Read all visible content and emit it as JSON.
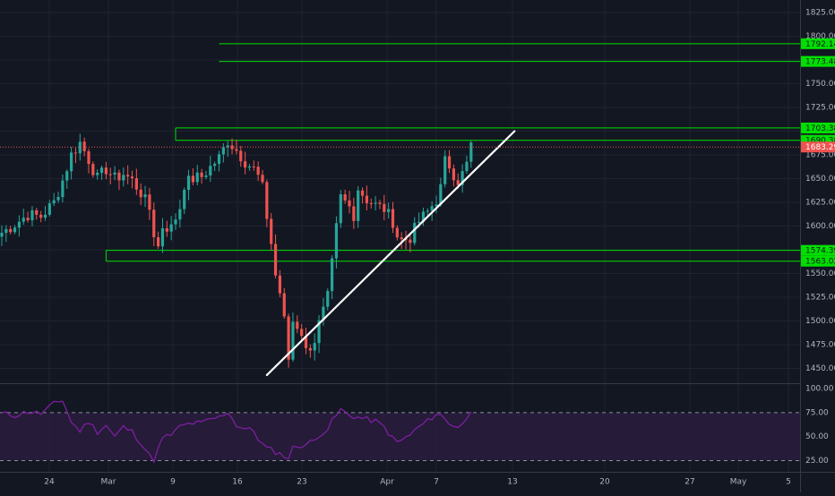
{
  "theme": {
    "background": "#131722",
    "grid": "#1e2330",
    "axis_text": "#b2b5be",
    "up_color": "#26a69a",
    "down_color": "#ef5350",
    "level_color": "#00e000",
    "trendline_color": "#ffffff",
    "last_price_color": "#ef5350",
    "rsi_line_color": "#7b1fa2",
    "rsi_band_fill": "#2a1c3c"
  },
  "chart_data": [
    {
      "type": "candlestick",
      "y_ticks": [
        "1825.00",
        "1800.00",
        "1775.00",
        "1750.00",
        "1725.00",
        "1700.00",
        "1675.00",
        "1650.00",
        "1625.00",
        "1600.00",
        "1575.00",
        "1550.00",
        "1525.00",
        "1500.00",
        "1475.00",
        "1450.00"
      ],
      "ylim": [
        1440,
        1830
      ],
      "x_ticks": [
        "24",
        "Mar",
        "9",
        "16",
        "23",
        "Apr",
        "7",
        "13",
        "20",
        "27",
        "May",
        "5"
      ],
      "price_path": [
        [
          0,
          1593
        ],
        [
          3,
          1602
        ],
        [
          6,
          1612
        ],
        [
          9,
          1610
        ],
        [
          12,
          1625
        ],
        [
          14,
          1648
        ],
        [
          16,
          1675
        ],
        [
          18,
          1688
        ],
        [
          20,
          1670
        ],
        [
          22,
          1650
        ],
        [
          24,
          1660
        ],
        [
          26,
          1650
        ],
        [
          28,
          1655
        ],
        [
          30,
          1648
        ],
        [
          32,
          1635
        ],
        [
          34,
          1618
        ],
        [
          35,
          1592
        ],
        [
          36,
          1578
        ],
        [
          37,
          1600
        ],
        [
          39,
          1598
        ],
        [
          41,
          1620
        ],
        [
          42,
          1644
        ],
        [
          44,
          1650
        ],
        [
          46,
          1652
        ],
        [
          48,
          1662
        ],
        [
          50,
          1672
        ],
        [
          52,
          1690
        ],
        [
          54,
          1680
        ],
        [
          56,
          1668
        ],
        [
          58,
          1660
        ],
        [
          59,
          1652
        ],
        [
          60,
          1640
        ],
        [
          61,
          1610
        ],
        [
          62,
          1582
        ],
        [
          63,
          1548
        ],
        [
          64,
          1530
        ],
        [
          65,
          1500
        ],
        [
          66,
          1460
        ],
        [
          67,
          1500
        ],
        [
          68,
          1495
        ],
        [
          69,
          1488
        ],
        [
          70,
          1468
        ],
        [
          72,
          1480
        ],
        [
          73,
          1497
        ],
        [
          74,
          1510
        ],
        [
          75,
          1525
        ],
        [
          76,
          1560
        ],
        [
          77,
          1598
        ],
        [
          78,
          1630
        ],
        [
          80,
          1620
        ],
        [
          81,
          1612
        ],
        [
          82,
          1640
        ],
        [
          84,
          1628
        ],
        [
          86,
          1622
        ],
        [
          88,
          1618
        ],
        [
          90,
          1605
        ],
        [
          91,
          1590
        ],
        [
          92,
          1585
        ],
        [
          94,
          1588
        ],
        [
          96,
          1605
        ],
        [
          98,
          1615
        ],
        [
          100,
          1628
        ],
        [
          101,
          1640
        ],
        [
          102,
          1668
        ],
        [
          103,
          1664
        ],
        [
          104,
          1655
        ],
        [
          105,
          1648
        ],
        [
          106,
          1655
        ],
        [
          107,
          1665
        ],
        [
          108,
          1688
        ]
      ],
      "levels": [
        {
          "label": "1792.14",
          "value": 1792.14,
          "from_x": 50
        },
        {
          "label": "1773.48",
          "value": 1773.48,
          "from_x": 50
        },
        {
          "label": "1703.38",
          "value": 1703.38,
          "from_x": 40
        },
        {
          "label": "1690.38",
          "value": 1690.38,
          "from_x": 40
        },
        {
          "label": "1574.39",
          "value": 1574.39,
          "from_x": 24
        },
        {
          "label": "1563.02",
          "value": 1563.02,
          "from_x": 24
        }
      ],
      "last_price": {
        "label": "1683.29",
        "value": 1683.29
      },
      "trendline": {
        "x1": 61,
        "y1": 1443,
        "x2": 118,
        "y2": 1700
      }
    },
    {
      "type": "line",
      "name": "RSI",
      "y_ticks": [
        "100.00",
        "75.00",
        "50.00",
        "25.00"
      ],
      "ylim": [
        20,
        100
      ],
      "upper_band": 75,
      "lower_band": 25,
      "values": [
        [
          0,
          74
        ],
        [
          3,
          72
        ],
        [
          6,
          76
        ],
        [
          9,
          74
        ],
        [
          12,
          84
        ],
        [
          14,
          88
        ],
        [
          16,
          65
        ],
        [
          18,
          56
        ],
        [
          20,
          66
        ],
        [
          22,
          55
        ],
        [
          24,
          62
        ],
        [
          26,
          50
        ],
        [
          28,
          60
        ],
        [
          30,
          55
        ],
        [
          32,
          44
        ],
        [
          34,
          30
        ],
        [
          35,
          26
        ],
        [
          37,
          48
        ],
        [
          39,
          52
        ],
        [
          41,
          60
        ],
        [
          42,
          62
        ],
        [
          44,
          64
        ],
        [
          46,
          64
        ],
        [
          48,
          68
        ],
        [
          50,
          70
        ],
        [
          52,
          76
        ],
        [
          54,
          62
        ],
        [
          56,
          58
        ],
        [
          58,
          56
        ],
        [
          59,
          48
        ],
        [
          60,
          42
        ],
        [
          61,
          38
        ],
        [
          62,
          36
        ],
        [
          63,
          34
        ],
        [
          64,
          32
        ],
        [
          65,
          30
        ],
        [
          66,
          28
        ],
        [
          67,
          38
        ],
        [
          68,
          40
        ],
        [
          70,
          42
        ],
        [
          72,
          46
        ],
        [
          73,
          52
        ],
        [
          75,
          58
        ],
        [
          76,
          66
        ],
        [
          77,
          72
        ],
        [
          78,
          78
        ],
        [
          80,
          72
        ],
        [
          82,
          70
        ],
        [
          84,
          68
        ],
        [
          86,
          66
        ],
        [
          88,
          60
        ],
        [
          90,
          48
        ],
        [
          91,
          44
        ],
        [
          92,
          46
        ],
        [
          94,
          52
        ],
        [
          96,
          60
        ],
        [
          98,
          66
        ],
        [
          100,
          74
        ],
        [
          101,
          72
        ],
        [
          103,
          64
        ],
        [
          105,
          60
        ],
        [
          106,
          62
        ],
        [
          107,
          70
        ],
        [
          108,
          76
        ]
      ]
    }
  ]
}
